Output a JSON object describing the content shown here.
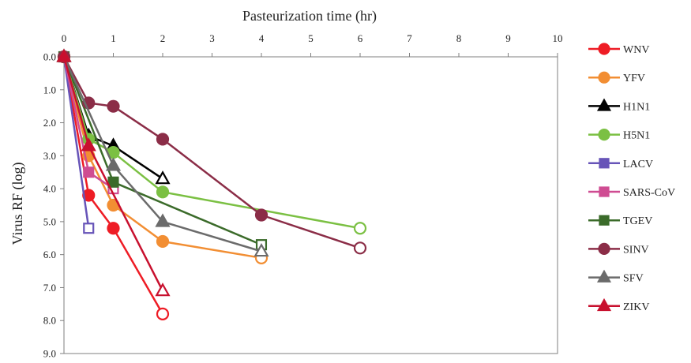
{
  "chart_data": {
    "type": "line",
    "xlabel": "Pasteurization time (hr)",
    "ylabel": "Virus RF (log)",
    "xlim": [
      0,
      10
    ],
    "ylim": [
      0,
      9
    ],
    "y_inverted": true,
    "x_axis_position": "top",
    "x_ticks": [
      "0",
      "1",
      "2",
      "3",
      "4",
      "5",
      "6",
      "7",
      "8",
      "9",
      "10"
    ],
    "y_ticks": [
      "0.0",
      "1.0",
      "2.0",
      "3.0",
      "4.0",
      "5.0",
      "6.0",
      "7.0",
      "8.0",
      "9.0"
    ],
    "grid": false,
    "legend_position": "right",
    "open_marker_meaning": "last point drawn as hollow marker",
    "series": [
      {
        "name": "WNV",
        "color": "#ee1c25",
        "marker": "circle",
        "x": [
          0,
          0.5,
          1,
          2
        ],
        "y": [
          0,
          4.2,
          5.2,
          7.8
        ]
      },
      {
        "name": "YFV",
        "color": "#f28e33",
        "marker": "circle",
        "x": [
          0,
          0.5,
          1,
          2,
          4
        ],
        "y": [
          0,
          3.0,
          4.5,
          5.6,
          6.1
        ]
      },
      {
        "name": "H1N1",
        "color": "#000000",
        "marker": "triangle",
        "x": [
          0,
          0.5,
          1,
          2
        ],
        "y": [
          0,
          2.4,
          2.7,
          3.7
        ]
      },
      {
        "name": "H5N1",
        "color": "#7bc043",
        "marker": "circle",
        "x": [
          0,
          0.5,
          1,
          2,
          6
        ],
        "y": [
          0,
          2.5,
          2.9,
          4.1,
          5.2
        ]
      },
      {
        "name": "LACV",
        "color": "#6754b8",
        "marker": "square",
        "x": [
          0,
          0.5
        ],
        "y": [
          0,
          5.2
        ]
      },
      {
        "name": "SARS-CoV",
        "color": "#cf4c92",
        "marker": "square",
        "x": [
          0,
          0.5,
          1
        ],
        "y": [
          0,
          3.5,
          4.0
        ]
      },
      {
        "name": "TGEV",
        "color": "#3b6b2a",
        "marker": "square",
        "x": [
          0,
          1,
          4
        ],
        "y": [
          0,
          3.8,
          5.7
        ]
      },
      {
        "name": "SINV",
        "color": "#8b2d47",
        "marker": "circle",
        "x": [
          0,
          0.5,
          1,
          2,
          4,
          6
        ],
        "y": [
          0,
          1.4,
          1.5,
          2.5,
          4.8,
          5.8
        ]
      },
      {
        "name": "SFV",
        "color": "#6b6b6b",
        "marker": "triangle",
        "x": [
          0,
          1,
          2,
          4
        ],
        "y": [
          0,
          3.3,
          5.0,
          5.9
        ]
      },
      {
        "name": "ZIKV",
        "color": "#c8102e",
        "marker": "triangle",
        "x": [
          0,
          0.5,
          2
        ],
        "y": [
          0,
          2.7,
          7.1
        ]
      }
    ]
  }
}
